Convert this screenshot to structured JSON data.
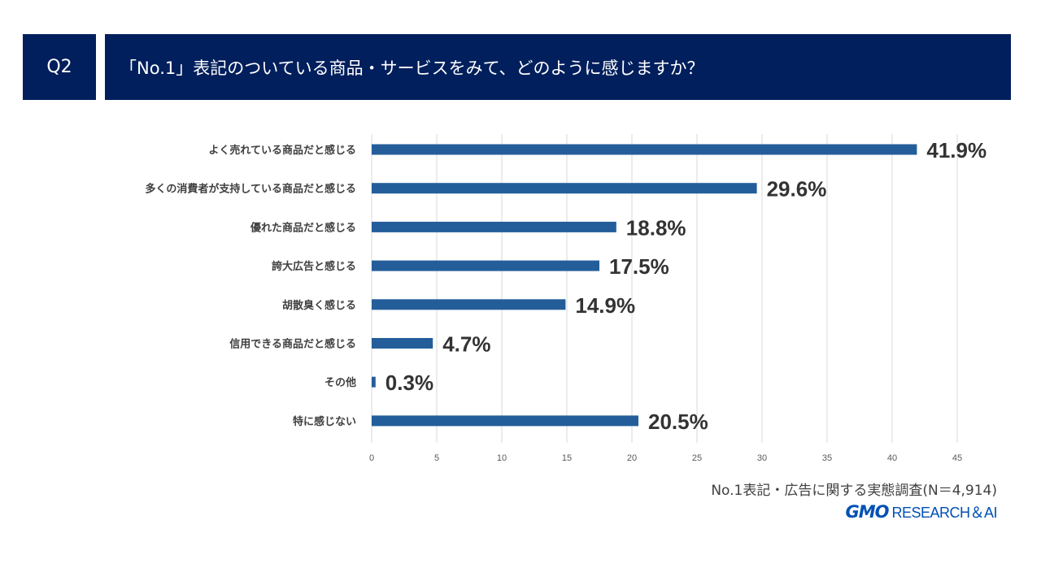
{
  "header": {
    "question_no": "Q2",
    "title": "「No.1」表記のついている商品・サービスをみて、どのように感じますか？"
  },
  "chart_data": {
    "type": "bar",
    "orientation": "horizontal",
    "categories": [
      "よく売れている商品だと感じる",
      "多くの消費者が支持している商品だと感じる",
      "優れた商品だと感じる",
      "誇大広告と感じる",
      "胡散臭く感じる",
      "信用できる商品だと感じる",
      "その他",
      "特に感じない"
    ],
    "values": [
      41.9,
      29.6,
      18.8,
      17.5,
      14.9,
      4.7,
      0.3,
      20.5
    ],
    "value_labels": [
      "41.9%",
      "29.6%",
      "18.8%",
      "17.5%",
      "14.9%",
      "4.7%",
      "0.3%",
      "20.5%"
    ],
    "xlim": [
      0,
      45
    ],
    "xticks": [
      0,
      5,
      10,
      15,
      20,
      25,
      30,
      35,
      40,
      45
    ],
    "grid": true,
    "bar_color": "#235e9a"
  },
  "footer": {
    "source": "No.1表記・広告に関する実態調査(N＝4,914)",
    "logo_mark": "GMO",
    "logo_text": "RESEARCH＆AI"
  },
  "colors": {
    "header_bg": "#001f5c",
    "bar": "#235e9a",
    "logo": "#0050b5"
  }
}
